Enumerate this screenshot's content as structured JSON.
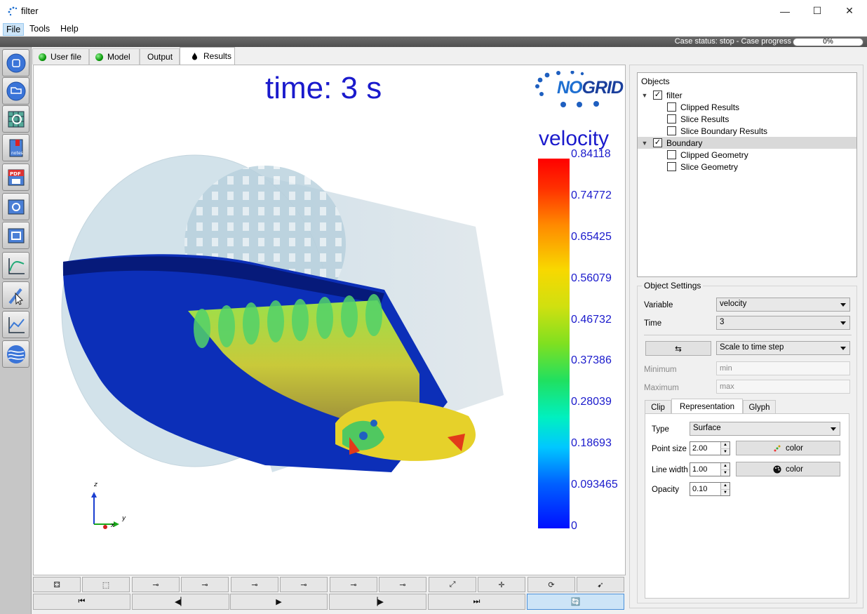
{
  "window": {
    "title": "filter",
    "minimize": "—",
    "maximize": "☐",
    "close": "✕"
  },
  "menu": {
    "file": "File",
    "tools": "Tools",
    "help": "Help"
  },
  "status": {
    "text": "Case status: stop - Case progress",
    "progress_label": "0%",
    "progress": 0
  },
  "tabs": [
    {
      "label": "User file",
      "status": "green"
    },
    {
      "label": "Model",
      "status": "green"
    },
    {
      "label": "Output"
    },
    {
      "label": "Results",
      "active": true
    }
  ],
  "viewport": {
    "time_label": "time: 3 s",
    "logo_no": "NO",
    "logo_grid": "GRID",
    "legend_title": "velocity",
    "legend_ticks": [
      "0.84118",
      "0.74772",
      "0.65425",
      "0.56079",
      "0.46732",
      "0.37386",
      "0.28039",
      "0.18693",
      "0.093465",
      "0"
    ],
    "axes": {
      "z": "z",
      "y": "y",
      "x": "x"
    }
  },
  "objects": {
    "title": "Objects",
    "tree": [
      {
        "label": "filter",
        "checked": true,
        "level": 0,
        "expanded": true
      },
      {
        "label": "Clipped Results",
        "checked": false,
        "level": 1
      },
      {
        "label": "Slice Results",
        "checked": false,
        "level": 1
      },
      {
        "label": "Slice Boundary Results",
        "checked": false,
        "level": 1
      },
      {
        "label": "Boundary",
        "checked": true,
        "level": 0,
        "expanded": true,
        "selected": true
      },
      {
        "label": "Clipped Geometry",
        "checked": false,
        "level": 1
      },
      {
        "label": "Slice Geometry",
        "checked": false,
        "level": 1
      }
    ]
  },
  "settings": {
    "title": "Object Settings",
    "variable_label": "Variable",
    "variable_value": "velocity",
    "time_label": "Time",
    "time_value": "3",
    "scale_value": "Scale to time step",
    "minimum_label": "Minimum",
    "minimum_placeholder": "min",
    "maximum_label": "Maximum",
    "maximum_placeholder": "max",
    "subtabs": [
      "Clip",
      "Representation",
      "Glyph"
    ],
    "type_label": "Type",
    "type_value": "Surface",
    "point_size_label": "Point size",
    "point_size_value": "2.00",
    "line_width_label": "Line width",
    "line_width_value": "1.00",
    "opacity_label": "Opacity",
    "opacity_value": "0.10",
    "color_label": "color"
  },
  "colors": {
    "accent": "#1a1acc",
    "led_green": "#0a9a0a",
    "selection": "#cce4f7"
  }
}
